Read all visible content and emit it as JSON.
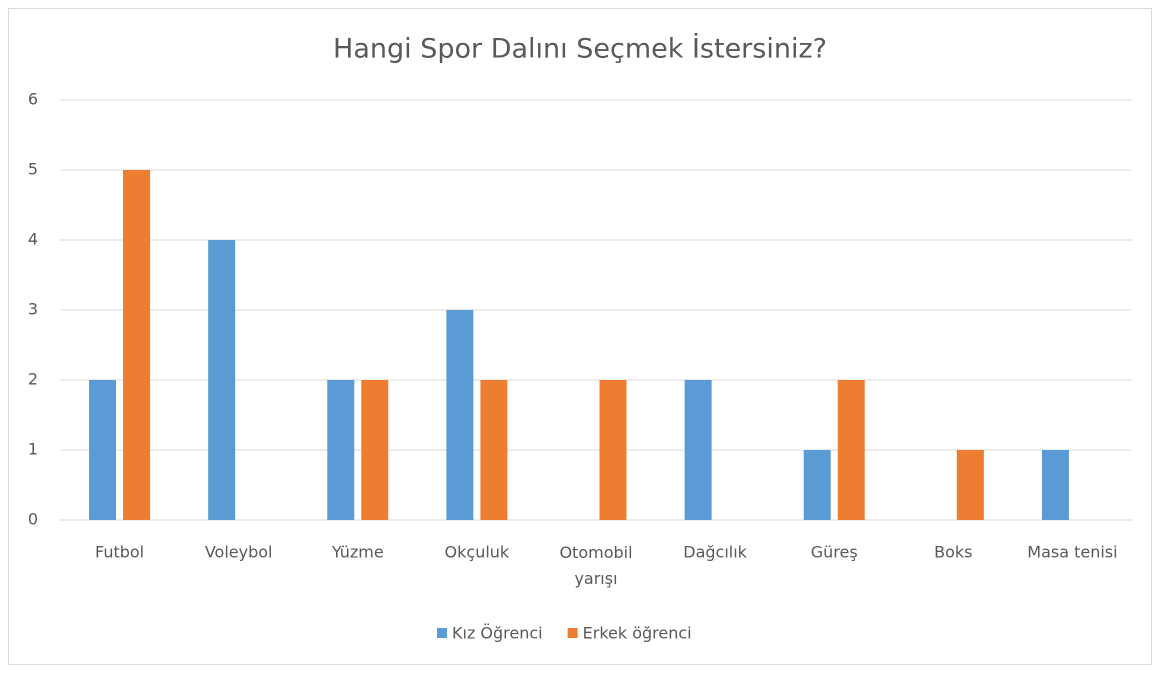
{
  "chart_data": {
    "type": "bar",
    "title": "Hangi Spor Dalını Seçmek İstersiniz?",
    "categories": [
      "Futbol",
      "Voleybol",
      "Yüzme",
      "Okçuluk",
      "Otomobil yarışı",
      "Dağcılık",
      "Güreş",
      "Boks",
      "Masa tenisi"
    ],
    "series": [
      {
        "name": "Kız Öğrenci",
        "color": "#5b9bd5",
        "values": [
          2,
          4,
          2,
          3,
          0,
          2,
          1,
          0,
          1
        ]
      },
      {
        "name": "Erkek öğrenci",
        "color": "#ed7d31",
        "values": [
          5,
          0,
          2,
          2,
          2,
          0,
          2,
          1,
          0
        ]
      }
    ],
    "ylim": [
      0,
      6
    ],
    "yticks": [
      0,
      1,
      2,
      3,
      4,
      5,
      6
    ],
    "grid": true,
    "legend": "bottom"
  }
}
